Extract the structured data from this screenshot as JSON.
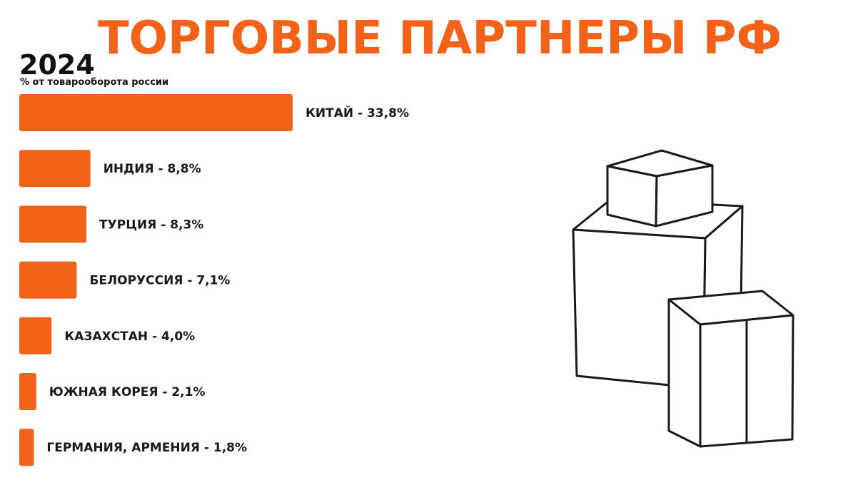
{
  "title": "ТОРГОВЫЕ ПАРТНЕРЫ РФ",
  "year": "2024",
  "subtitle": "% от товарооборота россии",
  "colors": {
    "bar": "#f26219",
    "title": "#f26219",
    "text": "#111111"
  },
  "chart_data": {
    "type": "bar",
    "orientation": "horizontal",
    "unit": "%",
    "categories": [
      "КИТАЙ",
      "ИНДИЯ",
      "ТУРЦИЯ",
      "БЕЛОРУССИЯ",
      "КАЗАХСТАН",
      "ЮЖНАЯ КОРЕЯ",
      "ГЕРМАНИЯ, АРМЕНИЯ"
    ],
    "values": [
      33.8,
      8.8,
      8.3,
      7.1,
      4.0,
      2.1,
      1.8
    ],
    "labels": [
      "КИТАЙ - 33,8%",
      "ИНДИЯ - 8,8%",
      "ТУРЦИЯ - 8,3%",
      "БЕЛОРУССИЯ - 7,1%",
      "КАЗАХСТАН - 4,0%",
      "ЮЖНАЯ КОРЕЯ - 2,1%",
      "ГЕРМАНИЯ, АРМЕНИЯ - 1,8%"
    ],
    "title": "ТОРГОВЫЕ ПАРТНЕРЫ РФ",
    "xlabel": "",
    "ylabel": "",
    "grid": false
  },
  "illustration": {
    "icon": "stacked-boxes-icon"
  }
}
